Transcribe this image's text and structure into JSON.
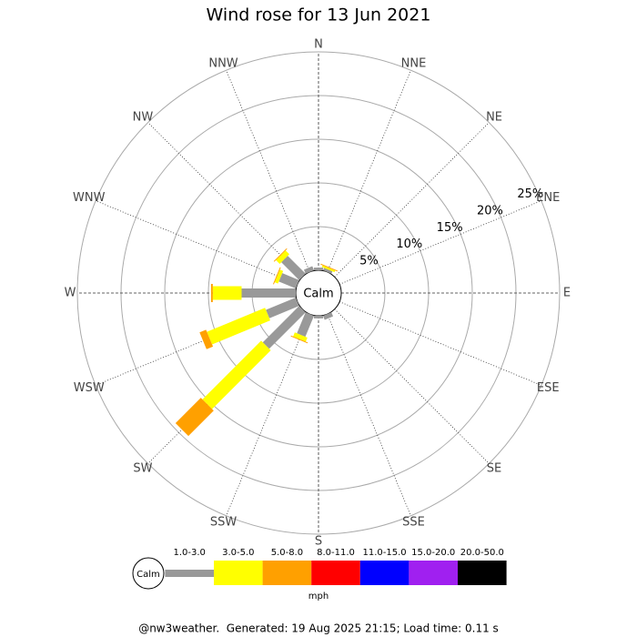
{
  "chart_data": {
    "type": "windrose",
    "title": "Wind rose for 13 Jun 2021",
    "categories": [
      "N",
      "NNE",
      "NE",
      "ENE",
      "E",
      "ESE",
      "SE",
      "SSE",
      "S",
      "SSW",
      "SW",
      "WSW",
      "W",
      "WNW",
      "NW",
      "NNW"
    ],
    "center_label": "Calm",
    "ylim": [
      0,
      25
    ],
    "yticks": [
      {
        "value": 5,
        "label": "5%"
      },
      {
        "value": 10,
        "label": "10%"
      },
      {
        "value": 15,
        "label": "15%"
      },
      {
        "value": 20,
        "label": "20%"
      },
      {
        "value": 25,
        "label": "25%"
      }
    ],
    "series": [
      {
        "name": "1.0-3.0",
        "color": "#999999",
        "values": [
          0.3,
          0.3,
          0,
          0,
          0,
          0,
          0,
          0.5,
          0.3,
          2.6,
          5.9,
          3.7,
          6.2,
          2.1,
          2.9,
          0.5
        ]
      },
      {
        "name": "3.0-5.0",
        "color": "#ffff00",
        "values": [
          0,
          0.2,
          0,
          0,
          0,
          0,
          0,
          0,
          0,
          0.5,
          9.5,
          7.2,
          3.3,
          0.4,
          0.6,
          0
        ]
      },
      {
        "name": "5.0-8.0",
        "color": "#ffa000",
        "values": [
          0,
          0.1,
          0,
          0,
          0,
          0,
          0,
          0,
          0,
          0.1,
          4.1,
          0.8,
          0.2,
          0.1,
          0.1,
          0
        ]
      },
      {
        "name": "8.0-11.0",
        "color": "#ff0000",
        "values": [
          0,
          0,
          0,
          0,
          0,
          0,
          0,
          0,
          0,
          0,
          0,
          0,
          0,
          0,
          0,
          0
        ]
      },
      {
        "name": "11.0-15.0",
        "color": "#0000ff",
        "values": [
          0,
          0,
          0,
          0,
          0,
          0,
          0,
          0,
          0,
          0,
          0,
          0,
          0,
          0,
          0,
          0
        ]
      },
      {
        "name": "15.0-20.0",
        "color": "#a020f0",
        "values": [
          0,
          0,
          0,
          0,
          0,
          0,
          0,
          0,
          0,
          0,
          0,
          0,
          0,
          0,
          0,
          0
        ]
      },
      {
        "name": "20.0-50.0",
        "color": "#000000",
        "values": [
          0,
          0,
          0,
          0,
          0,
          0,
          0,
          0,
          0,
          0,
          0,
          0,
          0,
          0,
          0,
          0
        ]
      }
    ],
    "unit_label": "mph",
    "footer": "@nw3weather.  Generated: 19 Aug 2025 21:15; Load time: 0.11 s"
  }
}
